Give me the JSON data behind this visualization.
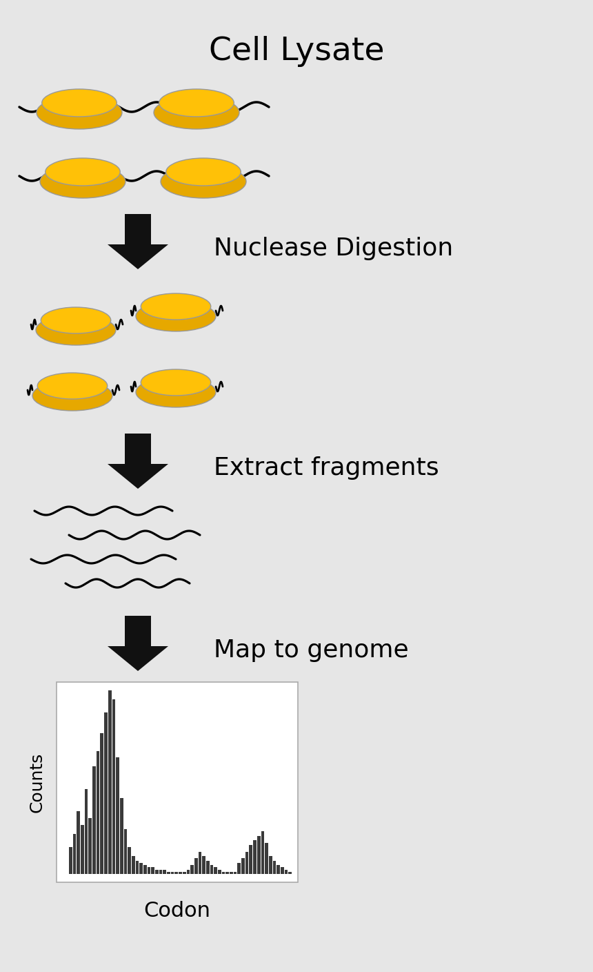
{
  "bg_color": "#e6e6e6",
  "title": "Cell Lysate",
  "label_nuclease": "Nuclease Digestion",
  "label_extract": "Extract fragments",
  "label_map": "Map to genome",
  "label_counts": "Counts",
  "label_codon": "Codon",
  "ribosome_color_top": "#FFC107",
  "ribosome_color_bottom": "#E6A800",
  "ribosome_outline": "#999999",
  "arrow_color": "#111111",
  "bar_color": "#3a3a3a",
  "chart_bg": "#ffffff",
  "chart_border": "#aaaaaa",
  "bar_heights": [
    12,
    18,
    28,
    22,
    38,
    25,
    48,
    55,
    63,
    72,
    82,
    78,
    52,
    34,
    20,
    12,
    8,
    6,
    5,
    4,
    3,
    3,
    2,
    2,
    2,
    1,
    1,
    1,
    1,
    1,
    2,
    4,
    7,
    10,
    8,
    6,
    4,
    3,
    2,
    1,
    1,
    1,
    1,
    5,
    7,
    10,
    13,
    15,
    17,
    19,
    14,
    8,
    6,
    4,
    3,
    2,
    1
  ]
}
